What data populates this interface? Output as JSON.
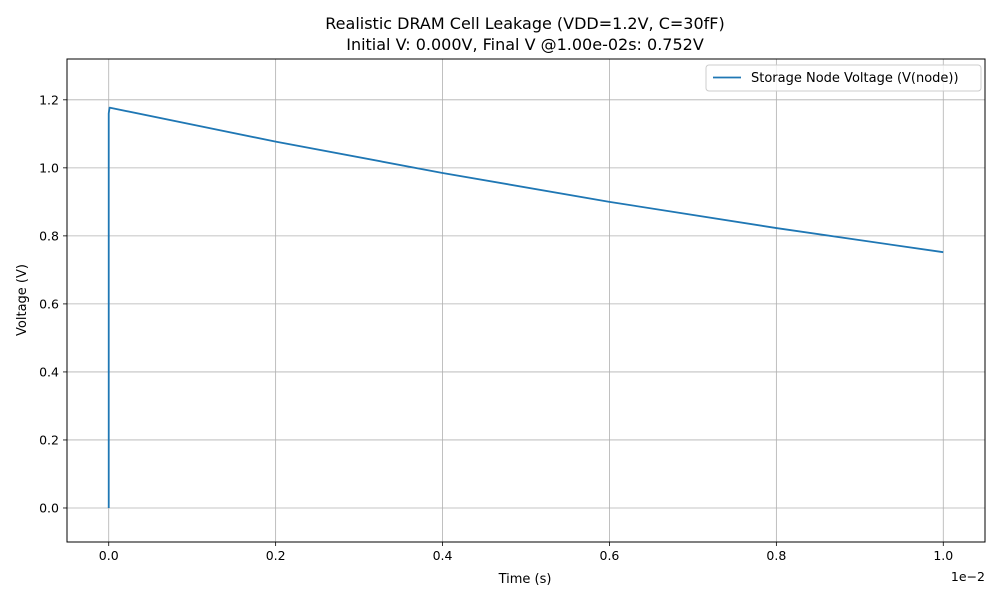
{
  "chart_data": {
    "type": "line",
    "title": "Realistic DRAM Cell Leakage (VDD=1.2V, C=30fF)",
    "subtitle": "Initial V: 0.000V, Final V @1.00e-02s: 0.752V",
    "xlabel": "Time (s)",
    "ylabel": "Voltage (V)",
    "x_offset_label": "1e−2",
    "xlim": [
      -0.0005,
      0.0105
    ],
    "ylim": [
      -0.1,
      1.32
    ],
    "x_ticks": [
      0.0,
      0.002,
      0.004,
      0.006,
      0.008,
      0.01
    ],
    "x_tick_labels": [
      "0.0",
      "0.2",
      "0.4",
      "0.6",
      "0.8",
      "1.0"
    ],
    "y_ticks": [
      0.0,
      0.2,
      0.4,
      0.6,
      0.8,
      1.0,
      1.2
    ],
    "y_tick_labels": [
      "0.0",
      "0.2",
      "0.4",
      "0.6",
      "0.8",
      "1.0",
      "1.2"
    ],
    "grid": true,
    "legend_position": "top-right",
    "series": [
      {
        "name": "Storage Node Voltage (V(node))",
        "color": "#1f77b4",
        "x": [
          0.0,
          0.0,
          1e-05,
          0.002,
          0.004,
          0.006,
          0.008,
          0.01
        ],
        "y": [
          0.0,
          1.16,
          1.177,
          1.077,
          0.985,
          0.9,
          0.823,
          0.752
        ]
      }
    ]
  }
}
